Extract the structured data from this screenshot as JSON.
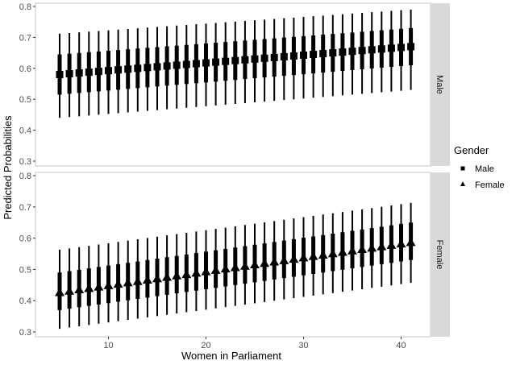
{
  "chart_data": {
    "type": "scatter",
    "title": "",
    "xlabel": "Women in Parliament",
    "ylabel": "Predicted Probabilities",
    "xlim": [
      2.5,
      43.5
    ],
    "ylim": [
      0.29,
      0.81
    ],
    "x_ticks": [
      10,
      20,
      30,
      40
    ],
    "y_ticks": [
      0.3,
      0.4,
      0.5,
      0.6,
      0.7,
      0.8
    ],
    "grid": false,
    "legend": {
      "title": "Gender",
      "position": "right",
      "entries": [
        {
          "label": "Male",
          "shape": "square"
        },
        {
          "label": "Female",
          "shape": "triangle"
        }
      ]
    },
    "facets": [
      {
        "label": "Male",
        "shape": "square",
        "x_start": 5,
        "x_end": 41,
        "point": [
          0.58,
          0.67
        ],
        "inner": [
          [
            0.515,
            0.645
          ],
          [
            0.61,
            0.73
          ]
        ],
        "outer": [
          [
            0.44,
            0.712
          ],
          [
            0.53,
            0.79
          ]
        ]
      },
      {
        "label": "Female",
        "shape": "triangle",
        "x_start": 5,
        "x_end": 41,
        "point": [
          0.425,
          0.585
        ],
        "inner": [
          [
            0.37,
            0.49
          ],
          [
            0.53,
            0.65
          ]
        ],
        "outer": [
          [
            0.31,
            0.563
          ],
          [
            0.457,
            0.713
          ]
        ]
      }
    ]
  }
}
